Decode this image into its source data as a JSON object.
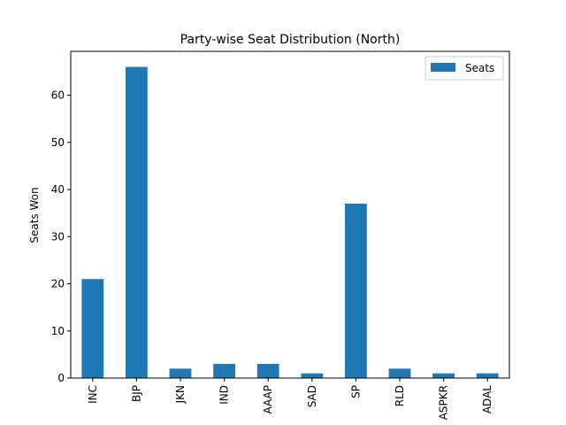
{
  "chart_data": {
    "type": "bar",
    "title": "Party-wise Seat Distribution (North)",
    "xlabel": "",
    "ylabel": "Seats Won",
    "categories": [
      "INC",
      "BJP",
      "JKN",
      "IND",
      "AAAP",
      "SAD",
      "SP",
      "RLD",
      "ASPKR",
      "ADAL"
    ],
    "series": [
      {
        "name": "Seats",
        "values": [
          21,
          66,
          2,
          3,
          3,
          1,
          37,
          2,
          1,
          1
        ],
        "color": "#1f77b4"
      }
    ],
    "ylim": [
      0,
      69.3
    ],
    "yticks": [
      0,
      10,
      20,
      30,
      40,
      50,
      60
    ],
    "grid": false,
    "legend_position": "upper right"
  }
}
